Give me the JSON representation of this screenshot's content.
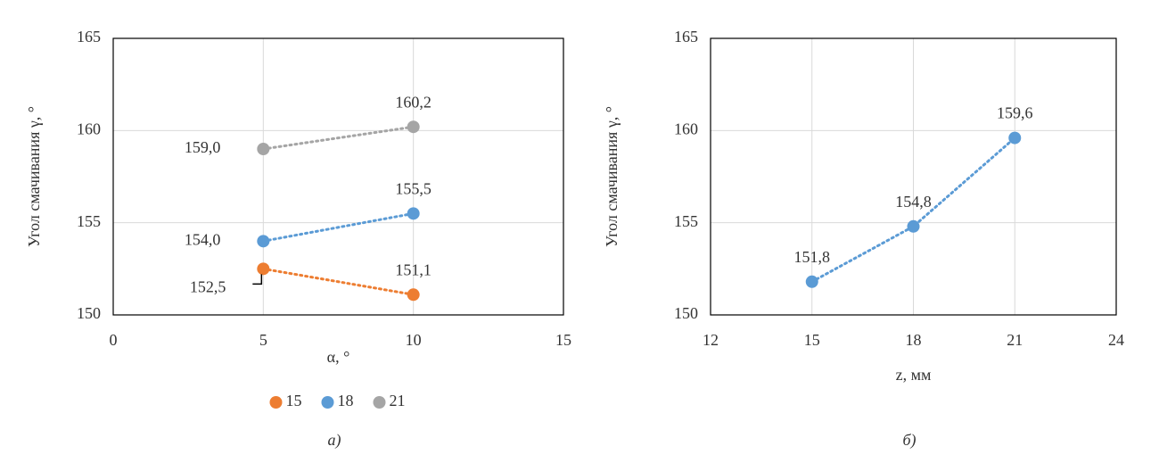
{
  "chart_data": [
    {
      "type": "scatter",
      "caption": "а)",
      "x_label": "α, °",
      "y_label": "Угол смачивания γ, °",
      "xlim": [
        0,
        15
      ],
      "xticks": [
        0,
        5,
        10,
        15
      ],
      "ylim": [
        150,
        165
      ],
      "yticks": [
        150,
        155,
        160,
        165
      ],
      "grid": true,
      "line_style": "dotted",
      "legend": "bottom",
      "series": [
        {
          "name": "15",
          "color": "#ed7d31",
          "x": [
            5,
            10
          ],
          "values": [
            152.5,
            151.1
          ],
          "value_labels": [
            "152,5",
            "151,1"
          ]
        },
        {
          "name": "18",
          "color": "#5b9bd5",
          "x": [
            5,
            10
          ],
          "values": [
            154.0,
            155.5
          ],
          "value_labels": [
            "154,0",
            "155,5"
          ]
        },
        {
          "name": "21",
          "color": "#a5a5a5",
          "x": [
            5,
            10
          ],
          "values": [
            159.0,
            160.2
          ],
          "value_labels": [
            "159,0",
            "160,2"
          ]
        }
      ]
    },
    {
      "type": "scatter",
      "caption": "б)",
      "x_label": "z, мм",
      "y_label": "Угол смачивания γ, °",
      "xlim": [
        12,
        24
      ],
      "xticks": [
        12,
        15,
        18,
        21,
        24
      ],
      "ylim": [
        150,
        165
      ],
      "yticks": [
        150,
        155,
        160,
        165
      ],
      "grid": true,
      "line_style": "dotted",
      "series": [
        {
          "color": "#5b9bd5",
          "x": [
            15,
            18,
            21
          ],
          "values": [
            151.8,
            154.8,
            159.6
          ],
          "value_labels": [
            "151,8",
            "154,8",
            "159,6"
          ]
        }
      ]
    }
  ]
}
